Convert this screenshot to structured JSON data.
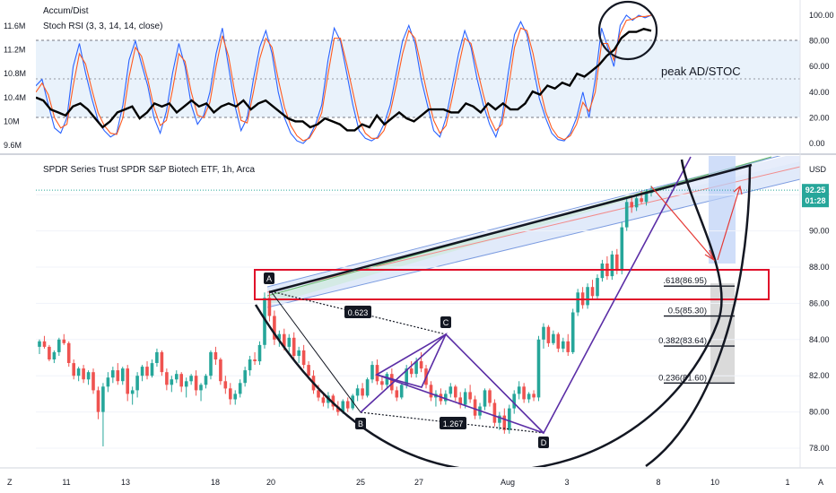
{
  "indicator_panel": {
    "title_1": "Accum/Dist",
    "title_2": "Stoch RSI (3, 3, 14, 14, close)",
    "annotation": "peak AD/STOC"
  },
  "price_panel": {
    "title": "SPDR Series Trust SPDR S&P Biotech ETF, 1h, Arca",
    "currency": "USD",
    "current_price": "92.25",
    "countdown": "01:28"
  },
  "pattern": {
    "points": [
      "A",
      "B",
      "C",
      "D"
    ],
    "ratios": [
      "0.623",
      "1.267"
    ]
  },
  "fib_levels": [
    {
      "label": ".618(86.95)",
      "value": 86.95
    },
    {
      "label": "0.5(85.30)",
      "value": 85.3
    },
    {
      "label": "0.382(83.64)",
      "value": 83.64
    },
    {
      "label": "0.236(81.60)",
      "value": 81.6
    }
  ],
  "bottom_bar": {
    "left": "Z",
    "right": "A"
  },
  "colors": {
    "up": "#26a69a",
    "down": "#ef5350",
    "ad_line": "#000000",
    "stoch_k": "#2962ff",
    "stoch_d": "#ff5a1f",
    "band": "#e3f0fa",
    "zone_box": "#e0102a",
    "pattern": "#5b2ea6"
  },
  "chart_data": [
    {
      "type": "line",
      "title": "Accum/Dist / Stoch RSI (3, 3, 14, 14, close)",
      "y_left_ticks": [
        "11.6M",
        "11.2M",
        "10.8M",
        "10.4M",
        "10M",
        "9.6M"
      ],
      "y_right_ticks": [
        "100.00",
        "80.00",
        "60.00",
        "40.00",
        "20.00",
        "0.00"
      ],
      "ylim_right": [
        0,
        100
      ],
      "ylim_left": [
        9.6,
        11.6
      ],
      "bands": [
        20,
        50,
        80
      ],
      "series": [
        {
          "name": "K",
          "values": [
            45,
            50,
            30,
            12,
            8,
            20,
            60,
            78,
            55,
            35,
            18,
            10,
            5,
            8,
            30,
            65,
            80,
            62,
            45,
            20,
            8,
            25,
            55,
            78,
            60,
            30,
            15,
            22,
            40,
            70,
            90,
            60,
            30,
            10,
            20,
            50,
            75,
            88,
            70,
            40,
            20,
            8,
            2,
            0,
            5,
            15,
            30,
            65,
            90,
            80,
            55,
            30,
            10,
            4,
            2,
            5,
            15,
            30,
            55,
            80,
            92,
            78,
            50,
            30,
            10,
            5,
            20,
            45,
            70,
            88,
            75,
            50,
            30,
            15,
            5,
            20,
            55,
            85,
            95,
            85,
            60,
            35,
            20,
            8,
            3,
            2,
            8,
            20,
            40,
            20,
            50,
            90,
            75,
            60,
            92,
            100,
            96,
            100,
            98,
            100
          ]
        },
        {
          "name": "D",
          "values": [
            40,
            47,
            38,
            20,
            12,
            15,
            45,
            70,
            62,
            42,
            24,
            14,
            8,
            7,
            20,
            52,
            75,
            68,
            50,
            28,
            14,
            18,
            42,
            70,
            64,
            40,
            22,
            20,
            32,
            60,
            84,
            68,
            40,
            18,
            16,
            40,
            66,
            82,
            75,
            50,
            28,
            14,
            6,
            2,
            4,
            12,
            24,
            54,
            82,
            82,
            62,
            40,
            18,
            8,
            4,
            4,
            10,
            24,
            46,
            70,
            88,
            82,
            60,
            38,
            18,
            8,
            14,
            36,
            60,
            82,
            78,
            58,
            38,
            20,
            10,
            15,
            42,
            75,
            90,
            88,
            70,
            45,
            25,
            12,
            5,
            3,
            6,
            15,
            32,
            25,
            40,
            78,
            78,
            65,
            86,
            96,
            97,
            99,
            99,
            100
          ]
        },
        {
          "name": "AD",
          "values": [
            10.4,
            10.35,
            10.2,
            10.15,
            10.1,
            10.25,
            10.3,
            10.2,
            10.05,
            9.9,
            10.0,
            10.15,
            10.2,
            10.25,
            10.05,
            10.15,
            10.3,
            10.25,
            10.3,
            10.15,
            10.25,
            10.35,
            10.25,
            10.3,
            10.15,
            10.25,
            10.3,
            10.25,
            10.35,
            10.2,
            10.3,
            10.35,
            10.25,
            10.15,
            10.05,
            10.0,
            10.0,
            9.9,
            9.95,
            10.05,
            10.0,
            9.95,
            9.85,
            9.85,
            9.95,
            9.9,
            10.1,
            9.95,
            10.05,
            10.15,
            10.05,
            10.0,
            10.1,
            10.2,
            10.2,
            10.2,
            10.15,
            10.15,
            10.3,
            10.25,
            10.15,
            10.3,
            10.2,
            10.3,
            10.2,
            10.2,
            10.3,
            10.5,
            10.45,
            10.6,
            10.55,
            10.65,
            10.6,
            10.8,
            10.75,
            10.85,
            10.95,
            11.1,
            11.2,
            11.4,
            11.5,
            11.5,
            11.55,
            11.52
          ]
        }
      ]
    },
    {
      "type": "candlestick",
      "title": "SPDR Series Trust SPDR S&P Biotech ETF, 1h, Arca",
      "ylabel": "USD",
      "y_ticks": [
        "92.00",
        "90.00",
        "88.00",
        "86.00",
        "84.00",
        "82.00",
        "80.00",
        "78.00"
      ],
      "ylim": [
        77,
        94
      ],
      "x_ticks": [
        "11",
        "13",
        "18",
        "20",
        "25",
        "27",
        "Aug",
        "3",
        "8",
        "10",
        "1"
      ],
      "last_price": 92.25,
      "candles": [
        [
          83.6,
          84.0,
          83.2,
          83.9
        ],
        [
          83.9,
          84.2,
          83.5,
          83.6
        ],
        [
          83.6,
          83.7,
          82.8,
          82.9
        ],
        [
          82.9,
          83.4,
          82.7,
          83.3
        ],
        [
          83.3,
          84.1,
          83.1,
          84.0
        ],
        [
          84.0,
          84.3,
          83.7,
          83.8
        ],
        [
          83.8,
          83.9,
          82.5,
          82.7
        ],
        [
          82.7,
          82.9,
          81.8,
          82.0
        ],
        [
          82.0,
          82.5,
          81.7,
          82.4
        ],
        [
          82.4,
          82.6,
          81.6,
          81.8
        ],
        [
          81.8,
          82.3,
          81.5,
          82.2
        ],
        [
          82.2,
          82.4,
          81.0,
          81.2
        ],
        [
          81.2,
          81.4,
          79.6,
          80.0
        ],
        [
          80.0,
          81.6,
          78.1,
          81.4
        ],
        [
          81.4,
          82.2,
          81.1,
          81.9
        ],
        [
          81.9,
          82.5,
          81.6,
          82.3
        ],
        [
          82.3,
          82.7,
          81.5,
          81.7
        ],
        [
          81.7,
          82.5,
          81.5,
          82.4
        ],
        [
          82.4,
          82.6,
          80.6,
          81.0
        ],
        [
          81.0,
          81.4,
          80.4,
          81.2
        ],
        [
          81.2,
          82.2,
          80.8,
          82.0
        ],
        [
          82.0,
          82.6,
          81.7,
          82.5
        ],
        [
          82.5,
          82.8,
          81.8,
          82.0
        ],
        [
          82.0,
          82.9,
          81.9,
          82.7
        ],
        [
          82.7,
          83.5,
          82.5,
          83.3
        ],
        [
          83.3,
          83.4,
          82.0,
          82.2
        ],
        [
          82.2,
          82.4,
          81.2,
          81.5
        ],
        [
          81.5,
          82.0,
          81.1,
          81.8
        ],
        [
          81.8,
          82.3,
          81.6,
          82.1
        ],
        [
          82.1,
          82.2,
          81.1,
          81.4
        ],
        [
          81.4,
          81.9,
          80.8,
          81.7
        ],
        [
          81.7,
          82.1,
          81.5,
          82.0
        ],
        [
          82.0,
          82.3,
          80.9,
          81.2
        ],
        [
          81.2,
          81.6,
          80.6,
          81.5
        ],
        [
          81.5,
          82.1,
          81.3,
          82.0
        ],
        [
          82.0,
          83.4,
          81.8,
          83.3
        ],
        [
          83.3,
          83.6,
          82.6,
          82.9
        ],
        [
          82.9,
          83.0,
          81.5,
          81.7
        ],
        [
          81.7,
          82.0,
          81.0,
          81.3
        ],
        [
          81.3,
          81.6,
          80.4,
          80.7
        ],
        [
          80.7,
          81.2,
          80.4,
          81.0
        ],
        [
          81.0,
          81.8,
          80.8,
          81.6
        ],
        [
          81.6,
          82.5,
          81.4,
          82.3
        ],
        [
          82.3,
          83.1,
          82.0,
          82.9
        ],
        [
          82.9,
          83.3,
          82.6,
          82.8
        ],
        [
          82.8,
          83.9,
          82.6,
          83.7
        ],
        [
          83.7,
          86.6,
          83.5,
          86.3
        ],
        [
          86.3,
          86.7,
          85.0,
          85.3
        ],
        [
          85.3,
          85.6,
          83.7,
          84.0
        ],
        [
          84.0,
          84.5,
          83.6,
          84.3
        ],
        [
          84.3,
          84.6,
          83.4,
          83.6
        ],
        [
          83.6,
          84.3,
          83.3,
          84.1
        ],
        [
          84.1,
          84.4,
          82.9,
          83.1
        ],
        [
          83.1,
          83.6,
          82.7,
          83.4
        ],
        [
          83.4,
          83.7,
          82.4,
          82.6
        ],
        [
          82.6,
          82.8,
          81.8,
          82.0
        ],
        [
          82.0,
          82.3,
          81.0,
          81.2
        ],
        [
          81.2,
          81.5,
          80.6,
          80.8
        ],
        [
          80.8,
          81.0,
          80.3,
          80.5
        ],
        [
          80.5,
          81.1,
          80.2,
          80.9
        ],
        [
          80.9,
          81.0,
          80.1,
          80.3
        ],
        [
          80.3,
          80.6,
          79.8,
          80.0
        ],
        [
          80.0,
          80.7,
          79.9,
          80.6
        ],
        [
          80.6,
          80.8,
          80.0,
          80.2
        ],
        [
          80.2,
          81.0,
          80.1,
          80.9
        ],
        [
          80.9,
          81.5,
          80.6,
          81.3
        ],
        [
          81.3,
          81.6,
          80.7,
          80.9
        ],
        [
          80.9,
          81.9,
          80.8,
          81.8
        ],
        [
          81.8,
          82.8,
          81.6,
          82.6
        ],
        [
          82.6,
          82.9,
          81.5,
          81.7
        ],
        [
          81.7,
          82.0,
          81.2,
          81.5
        ],
        [
          81.5,
          82.2,
          81.3,
          82.1
        ],
        [
          82.1,
          82.4,
          81.0,
          81.2
        ],
        [
          81.2,
          81.4,
          80.6,
          80.8
        ],
        [
          80.8,
          81.6,
          80.7,
          81.5
        ],
        [
          81.5,
          82.6,
          81.3,
          82.4
        ],
        [
          82.4,
          82.8,
          81.9,
          82.1
        ],
        [
          82.1,
          83.0,
          81.9,
          82.8
        ],
        [
          82.8,
          83.3,
          82.2,
          82.4
        ],
        [
          82.4,
          82.6,
          81.3,
          81.5
        ],
        [
          81.5,
          81.7,
          80.6,
          80.8
        ],
        [
          80.8,
          81.2,
          80.3,
          81.0
        ],
        [
          81.0,
          81.3,
          80.4,
          80.6
        ],
        [
          80.6,
          81.2,
          80.4,
          81.0
        ],
        [
          81.0,
          81.6,
          80.8,
          81.4
        ],
        [
          81.4,
          81.5,
          80.6,
          80.8
        ],
        [
          80.8,
          81.1,
          80.2,
          80.4
        ],
        [
          80.4,
          81.3,
          80.2,
          81.1
        ],
        [
          81.1,
          81.5,
          80.5,
          80.7
        ],
        [
          80.7,
          80.9,
          79.6,
          79.8
        ],
        [
          79.8,
          80.5,
          79.6,
          80.3
        ],
        [
          80.3,
          81.3,
          80.1,
          81.2
        ],
        [
          81.2,
          81.3,
          80.3,
          80.5
        ],
        [
          80.5,
          80.7,
          79.2,
          79.4
        ],
        [
          79.4,
          80.0,
          79.0,
          79.8
        ],
        [
          79.8,
          80.2,
          78.8,
          79.0
        ],
        [
          79.0,
          80.4,
          78.8,
          80.2
        ],
        [
          80.2,
          81.2,
          79.9,
          81.0
        ],
        [
          81.0,
          81.7,
          80.7,
          81.4
        ],
        [
          81.4,
          81.6,
          80.5,
          80.7
        ],
        [
          80.7,
          81.1,
          80.5,
          81.0
        ],
        [
          81.0,
          81.2,
          80.6,
          80.8
        ],
        [
          80.8,
          84.2,
          80.6,
          84.0
        ],
        [
          84.0,
          84.9,
          83.5,
          84.7
        ],
        [
          84.7,
          84.8,
          83.6,
          83.8
        ],
        [
          83.8,
          84.5,
          83.7,
          84.3
        ],
        [
          84.3,
          84.4,
          83.3,
          83.5
        ],
        [
          83.5,
          84.1,
          83.3,
          83.9
        ],
        [
          83.9,
          84.3,
          83.1,
          83.3
        ],
        [
          83.3,
          85.7,
          83.2,
          85.5
        ],
        [
          85.5,
          86.8,
          85.3,
          86.6
        ],
        [
          86.6,
          86.9,
          85.7,
          85.9
        ],
        [
          85.9,
          87.1,
          85.7,
          86.9
        ],
        [
          86.9,
          87.3,
          86.2,
          86.4
        ],
        [
          86.4,
          87.6,
          86.2,
          87.4
        ],
        [
          87.4,
          88.4,
          87.2,
          88.2
        ],
        [
          88.2,
          88.6,
          87.3,
          87.5
        ],
        [
          87.5,
          88.9,
          87.3,
          88.7
        ],
        [
          88.7,
          89.0,
          87.6,
          87.8
        ],
        [
          87.8,
          90.5,
          87.6,
          90.2
        ],
        [
          90.2,
          91.8,
          90.0,
          91.6
        ],
        [
          91.6,
          91.9,
          91.0,
          91.3
        ],
        [
          91.3,
          92.0,
          91.1,
          91.8
        ],
        [
          91.8,
          92.2,
          91.5,
          91.6
        ],
        [
          91.6,
          92.3,
          91.4,
          92.1
        ],
        [
          92.1,
          92.5,
          91.9,
          92.25
        ]
      ]
    }
  ]
}
